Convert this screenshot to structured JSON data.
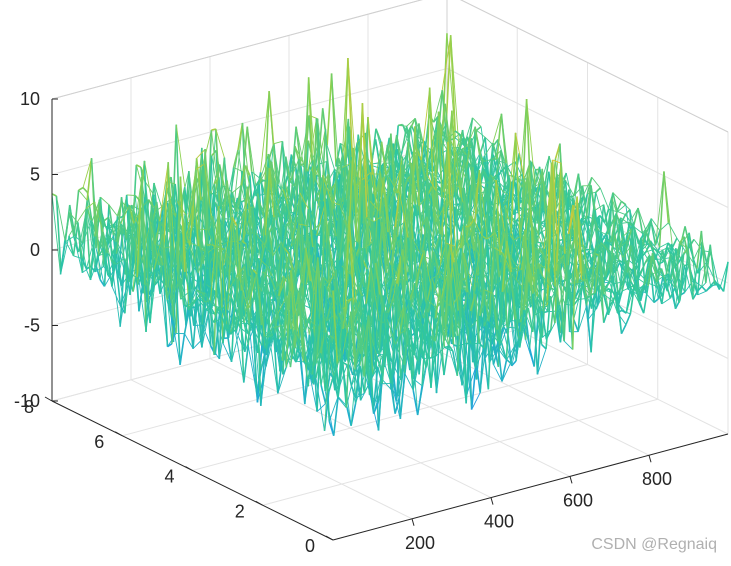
{
  "chart_data": {
    "type": "mesh3d",
    "title": "",
    "xlabel": "",
    "ylabel": "",
    "zlabel": "",
    "x_range": [
      0,
      1000
    ],
    "y_range": [
      0,
      8
    ],
    "z_range": [
      -10,
      10
    ],
    "x_ticks": [
      "200",
      "400",
      "600",
      "800"
    ],
    "y_ticks": [
      "0",
      "2",
      "4",
      "6",
      "8"
    ],
    "z_ticks": [
      "10",
      "5",
      "0",
      "-5",
      "-10"
    ],
    "x_tick_values": [
      200,
      400,
      600,
      800
    ],
    "y_tick_values": [
      0,
      2,
      4,
      6,
      8
    ],
    "z_tick_values": [
      10,
      5,
      0,
      -5,
      -10
    ],
    "grid": true,
    "box": true,
    "colormap": [
      "#3e7ef0",
      "#1ea9d8",
      "#2ec7a0",
      "#8fd14f",
      "#e9c531"
    ],
    "surface_note": "random noise surface roughly within -8 to 10"
  },
  "watermark": "CSDN @Regnaiq"
}
